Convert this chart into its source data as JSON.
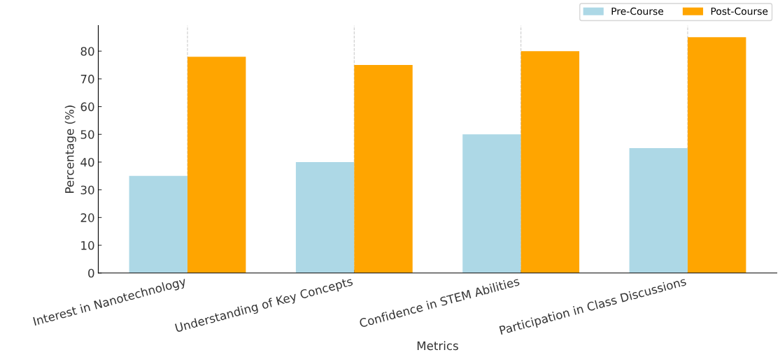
{
  "chart_data": {
    "type": "bar",
    "xlabel": "Metrics",
    "ylabel": "Percentage (%)",
    "categories": [
      "Interest in Nanotechnology",
      "Understanding of Key Concepts",
      "Confidence in STEM Abilities",
      "Participation in Class Discussions"
    ],
    "series": [
      {
        "name": "Pre-Course",
        "color": "#add8e6",
        "values": [
          35,
          40,
          50,
          45
        ]
      },
      {
        "name": "Post-Course",
        "color": "#ffa500",
        "values": [
          78,
          75,
          80,
          85
        ]
      }
    ],
    "ylim": [
      0,
      89.25
    ],
    "yticks": [
      0,
      10,
      20,
      30,
      40,
      50,
      60,
      70,
      80
    ],
    "grid": "x",
    "legend": "top right"
  }
}
